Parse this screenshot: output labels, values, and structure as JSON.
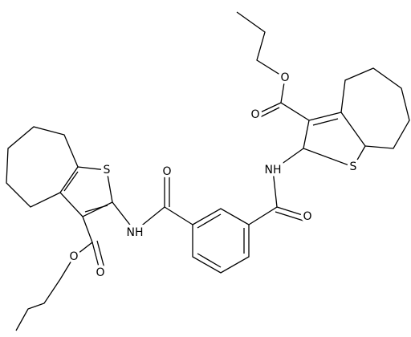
{
  "atoms": [
    "O",
    "O",
    "S",
    "NH",
    "O",
    "O",
    "NH",
    "S",
    "O",
    "O"
  ]
}
